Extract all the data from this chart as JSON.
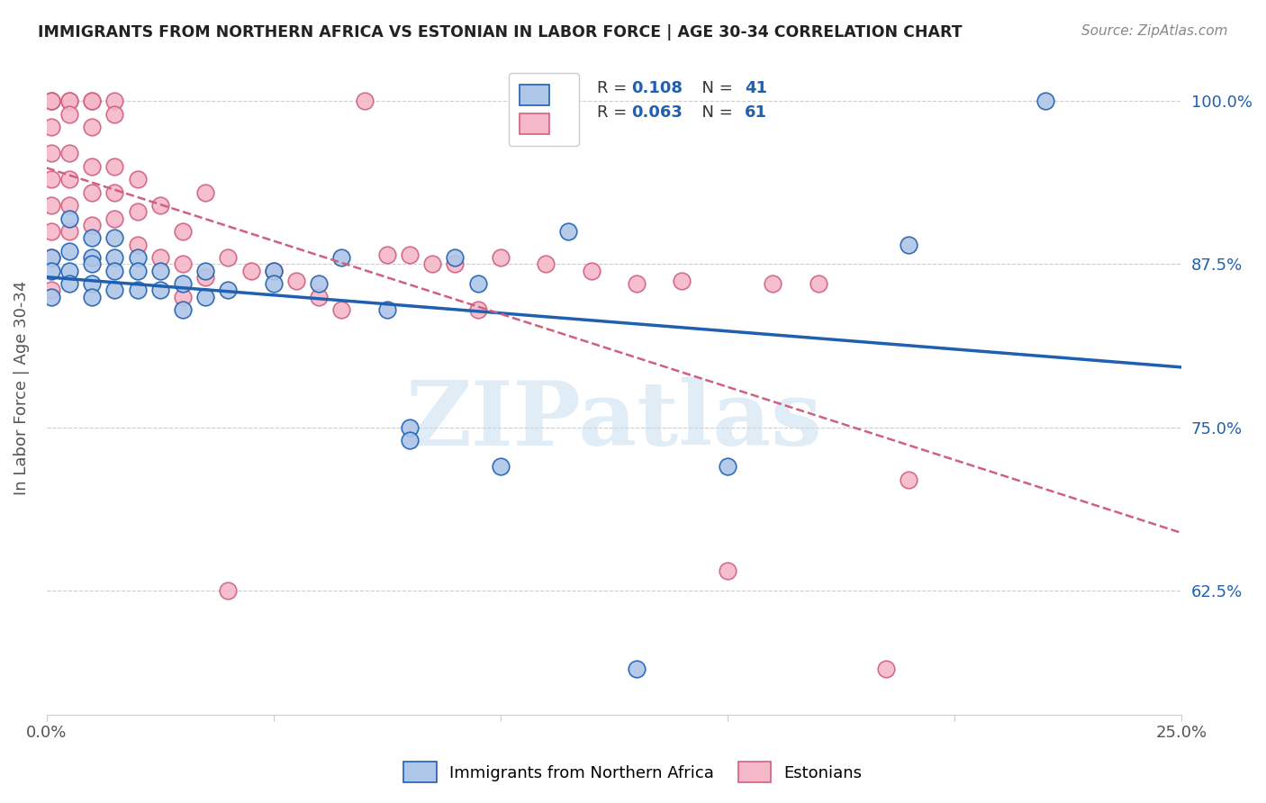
{
  "title": "IMMIGRANTS FROM NORTHERN AFRICA VS ESTONIAN IN LABOR FORCE | AGE 30-34 CORRELATION CHART",
  "source": "Source: ZipAtlas.com",
  "ylabel": "In Labor Force | Age 30-34",
  "xlim": [
    0.0,
    0.25
  ],
  "ylim": [
    0.53,
    1.03
  ],
  "yticks": [
    0.625,
    0.75,
    0.875,
    1.0
  ],
  "ytick_labels": [
    "62.5%",
    "75.0%",
    "87.5%",
    "100.0%"
  ],
  "xticks": [
    0.0,
    0.05,
    0.1,
    0.15,
    0.2,
    0.25
  ],
  "xtick_labels": [
    "0.0%",
    "",
    "",
    "",
    "",
    "25.0%"
  ],
  "blue_color": "#aec6e8",
  "pink_color": "#f4b8c8",
  "blue_line_color": "#2060b0",
  "pink_line_color": "#d06080",
  "watermark_color": "#c8ddf0",
  "blue_scatter_x": [
    0.001,
    0.001,
    0.001,
    0.005,
    0.005,
    0.005,
    0.005,
    0.01,
    0.01,
    0.01,
    0.01,
    0.01,
    0.015,
    0.015,
    0.015,
    0.015,
    0.02,
    0.02,
    0.02,
    0.025,
    0.025,
    0.03,
    0.03,
    0.035,
    0.035,
    0.04,
    0.05,
    0.05,
    0.06,
    0.065,
    0.075,
    0.08,
    0.09,
    0.095,
    0.1,
    0.115,
    0.13,
    0.19,
    0.22,
    0.08,
    0.15
  ],
  "blue_scatter_y": [
    0.88,
    0.87,
    0.85,
    0.91,
    0.885,
    0.87,
    0.86,
    0.895,
    0.88,
    0.875,
    0.86,
    0.85,
    0.895,
    0.88,
    0.87,
    0.855,
    0.88,
    0.87,
    0.855,
    0.87,
    0.855,
    0.86,
    0.84,
    0.87,
    0.85,
    0.855,
    0.87,
    0.86,
    0.86,
    0.88,
    0.84,
    0.75,
    0.88,
    0.86,
    0.72,
    0.9,
    0.565,
    0.89,
    1.0,
    0.74,
    0.72
  ],
  "pink_scatter_x": [
    0.001,
    0.001,
    0.001,
    0.001,
    0.001,
    0.001,
    0.001,
    0.001,
    0.001,
    0.001,
    0.005,
    0.005,
    0.005,
    0.005,
    0.005,
    0.005,
    0.005,
    0.01,
    0.01,
    0.01,
    0.01,
    0.01,
    0.01,
    0.015,
    0.015,
    0.015,
    0.015,
    0.015,
    0.02,
    0.02,
    0.02,
    0.025,
    0.025,
    0.03,
    0.03,
    0.03,
    0.035,
    0.035,
    0.04,
    0.04,
    0.045,
    0.05,
    0.055,
    0.06,
    0.065,
    0.07,
    0.075,
    0.08,
    0.085,
    0.09,
    0.095,
    0.1,
    0.11,
    0.12,
    0.13,
    0.14,
    0.15,
    0.16,
    0.17,
    0.185,
    0.19
  ],
  "pink_scatter_y": [
    1.0,
    1.0,
    1.0,
    0.98,
    0.96,
    0.94,
    0.92,
    0.9,
    0.88,
    0.855,
    1.0,
    1.0,
    0.99,
    0.96,
    0.94,
    0.92,
    0.9,
    1.0,
    1.0,
    0.98,
    0.95,
    0.93,
    0.905,
    1.0,
    0.99,
    0.95,
    0.93,
    0.91,
    0.94,
    0.915,
    0.89,
    0.92,
    0.88,
    0.9,
    0.875,
    0.85,
    0.93,
    0.865,
    0.88,
    0.625,
    0.87,
    0.87,
    0.862,
    0.85,
    0.84,
    1.0,
    0.882,
    0.882,
    0.875,
    0.875,
    0.84,
    0.88,
    0.875,
    0.87,
    0.86,
    0.862,
    0.64,
    0.86,
    0.86,
    0.565,
    0.71
  ]
}
